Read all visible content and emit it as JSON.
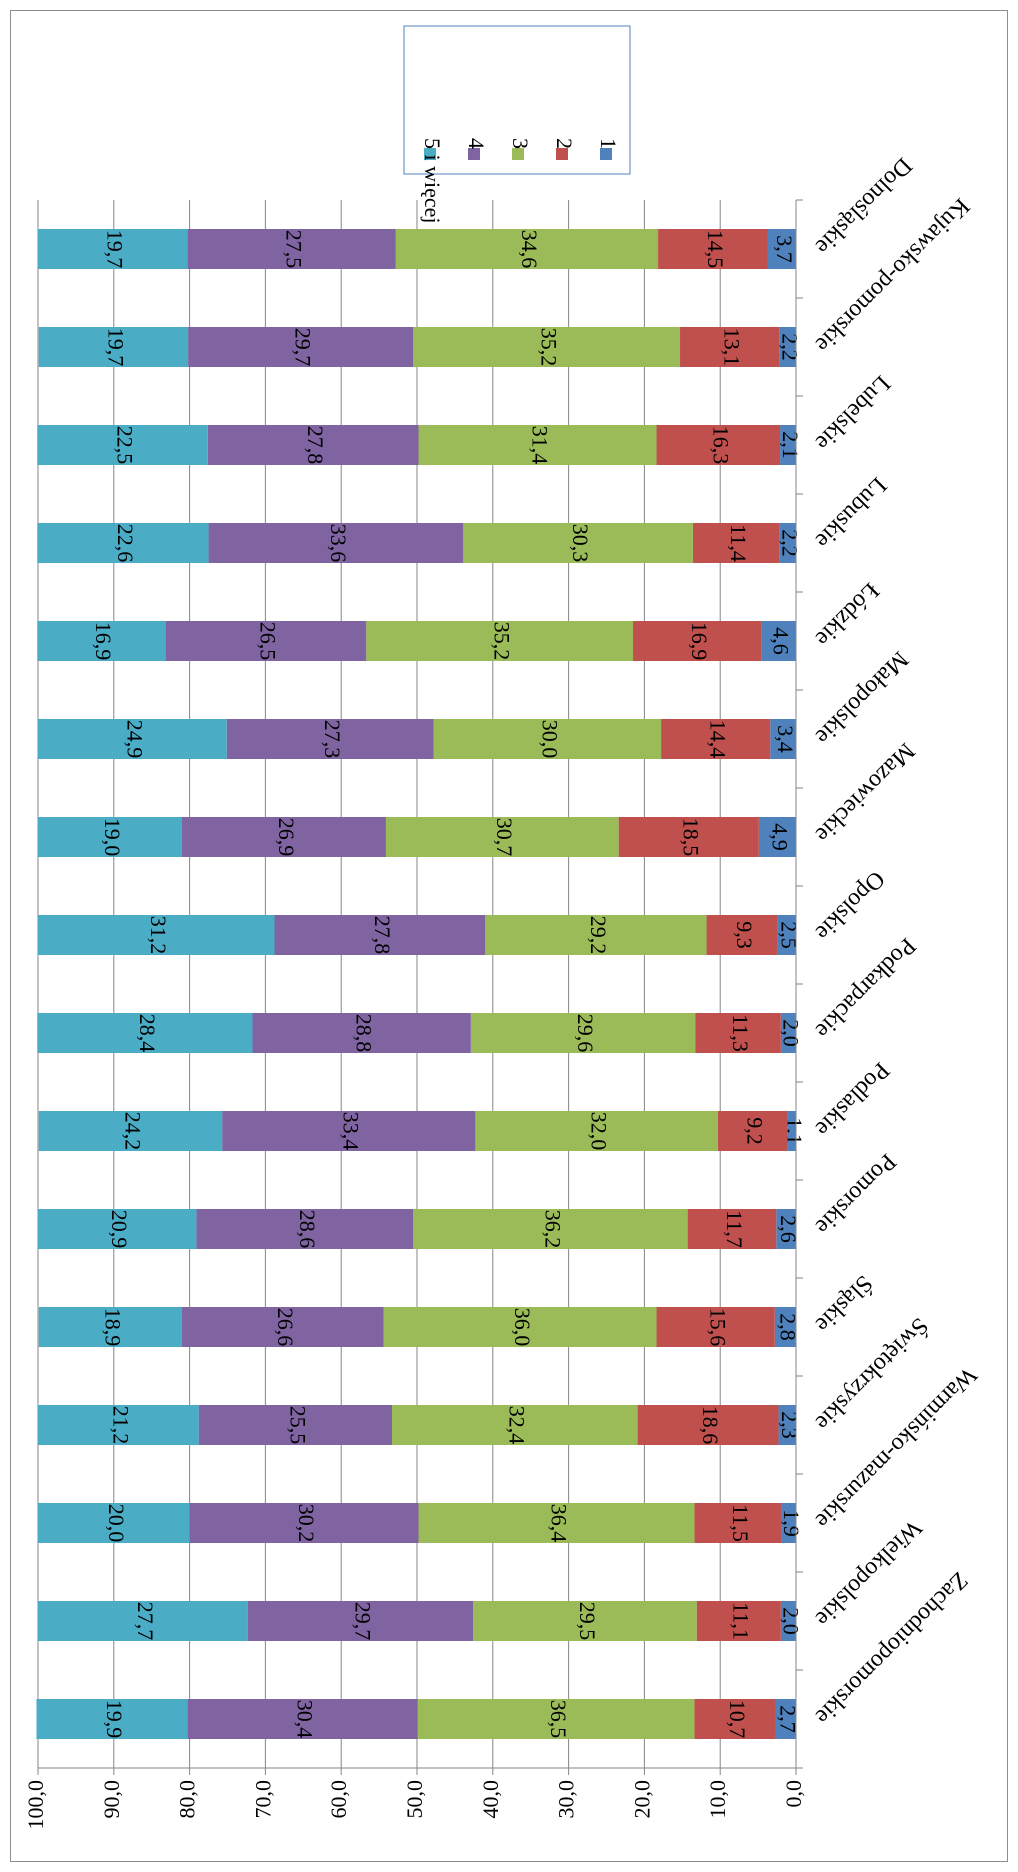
{
  "chart_data": {
    "type": "bar",
    "stacked": true,
    "orientation": "rotated",
    "categories": [
      "Dolnośląskie",
      "Kujawsko-pomorskie",
      "Lubelskie",
      "Lubuskie",
      "Łódzkie",
      "Małopolskie",
      "Mazowieckie",
      "Opolskie",
      "Podkarpackie",
      "Podlaskie",
      "Pomorskie",
      "Śląskie",
      "Świętokrzyskie",
      "Warmińsko-mazurskie",
      "Wielkopolskie",
      "Zachodniopomorskie"
    ],
    "series": [
      {
        "name": "1",
        "color": "#4f81bd",
        "values": [
          3.7,
          2.2,
          2.1,
          2.2,
          4.6,
          3.4,
          4.9,
          2.5,
          2.0,
          1.1,
          2.6,
          2.8,
          2.3,
          1.9,
          2.0,
          2.7
        ]
      },
      {
        "name": "2",
        "color": "#c0504d",
        "values": [
          14.5,
          13.1,
          16.3,
          11.4,
          16.9,
          14.4,
          18.5,
          9.3,
          11.3,
          9.2,
          11.7,
          15.6,
          18.6,
          11.5,
          11.1,
          10.7
        ]
      },
      {
        "name": "3",
        "color": "#9bbb59",
        "values": [
          34.6,
          35.2,
          31.4,
          30.3,
          35.2,
          30.0,
          30.7,
          29.2,
          29.6,
          32.0,
          36.2,
          36.0,
          32.4,
          36.4,
          29.5,
          36.5
        ]
      },
      {
        "name": "4",
        "color": "#8064a2",
        "values": [
          27.5,
          29.7,
          27.8,
          33.6,
          26.5,
          27.3,
          26.9,
          27.8,
          28.8,
          33.4,
          28.6,
          26.6,
          25.5,
          30.2,
          29.7,
          30.4
        ]
      },
      {
        "name": "5 i więcej",
        "color": "#4bacc6",
        "values": [
          19.7,
          19.7,
          22.5,
          22.6,
          16.9,
          24.9,
          19.0,
          31.2,
          28.4,
          24.2,
          20.9,
          18.9,
          21.2,
          20.0,
          27.7,
          19.9
        ]
      }
    ],
    "labels": [
      [
        "3,7",
        "2,2",
        "2,1",
        "2,2",
        "4,6",
        "3,4",
        "4,9",
        "2,5",
        "2,0",
        "1,1",
        "2,6",
        "2,8",
        "2,3",
        "1,9",
        "2,0",
        "2,7"
      ],
      [
        "14,5",
        "13,1",
        "16,3",
        "11,4",
        "16,9",
        "14,4",
        "18,5",
        "9,3",
        "11,3",
        "9,2",
        "11,7",
        "15,6",
        "18,6",
        "11,5",
        "11,1",
        "10,7"
      ],
      [
        "34,6",
        "35,2",
        "31,4",
        "30,3",
        "35,2",
        "30,0",
        "30,7",
        "29,2",
        "29,6",
        "32,0",
        "36,2",
        "36,0",
        "32,4",
        "36,4",
        "29,5",
        "36,5"
      ],
      [
        "27,5",
        "29,7",
        "27,8",
        "33,6",
        "26,5",
        "27,3",
        "26,9",
        "27,8",
        "28,8",
        "33,4",
        "28,6",
        "26,6",
        "25,5",
        "30,2",
        "29,7",
        "30,4"
      ],
      [
        "19,7",
        "19,7",
        "22,5",
        "22,6",
        "16,9",
        "24,9",
        "19,0",
        "31,2",
        "28,4",
        "24,2",
        "20,9",
        "18,9",
        "21,2",
        "20,0",
        "27,7",
        "19,9"
      ]
    ],
    "value_axis": {
      "range": [
        0,
        100
      ],
      "ticks": [
        0,
        10,
        20,
        30,
        40,
        50,
        60,
        70,
        80,
        90,
        100
      ],
      "tick_labels": [
        "0,0",
        "10,0",
        "20,0",
        "30,0",
        "40,0",
        "50,0",
        "60,0",
        "70,0",
        "80,0",
        "90,0",
        "100,0"
      ]
    },
    "grid": true,
    "legend": {
      "placement": "top",
      "entries": [
        "5 i więcej",
        "4",
        "3",
        "2",
        "1"
      ],
      "colors": [
        "#4bacc6",
        "#8064a2",
        "#9bbb59",
        "#c0504d",
        "#4f81bd"
      ]
    },
    "title": "",
    "xlabel": "",
    "ylabel": ""
  }
}
